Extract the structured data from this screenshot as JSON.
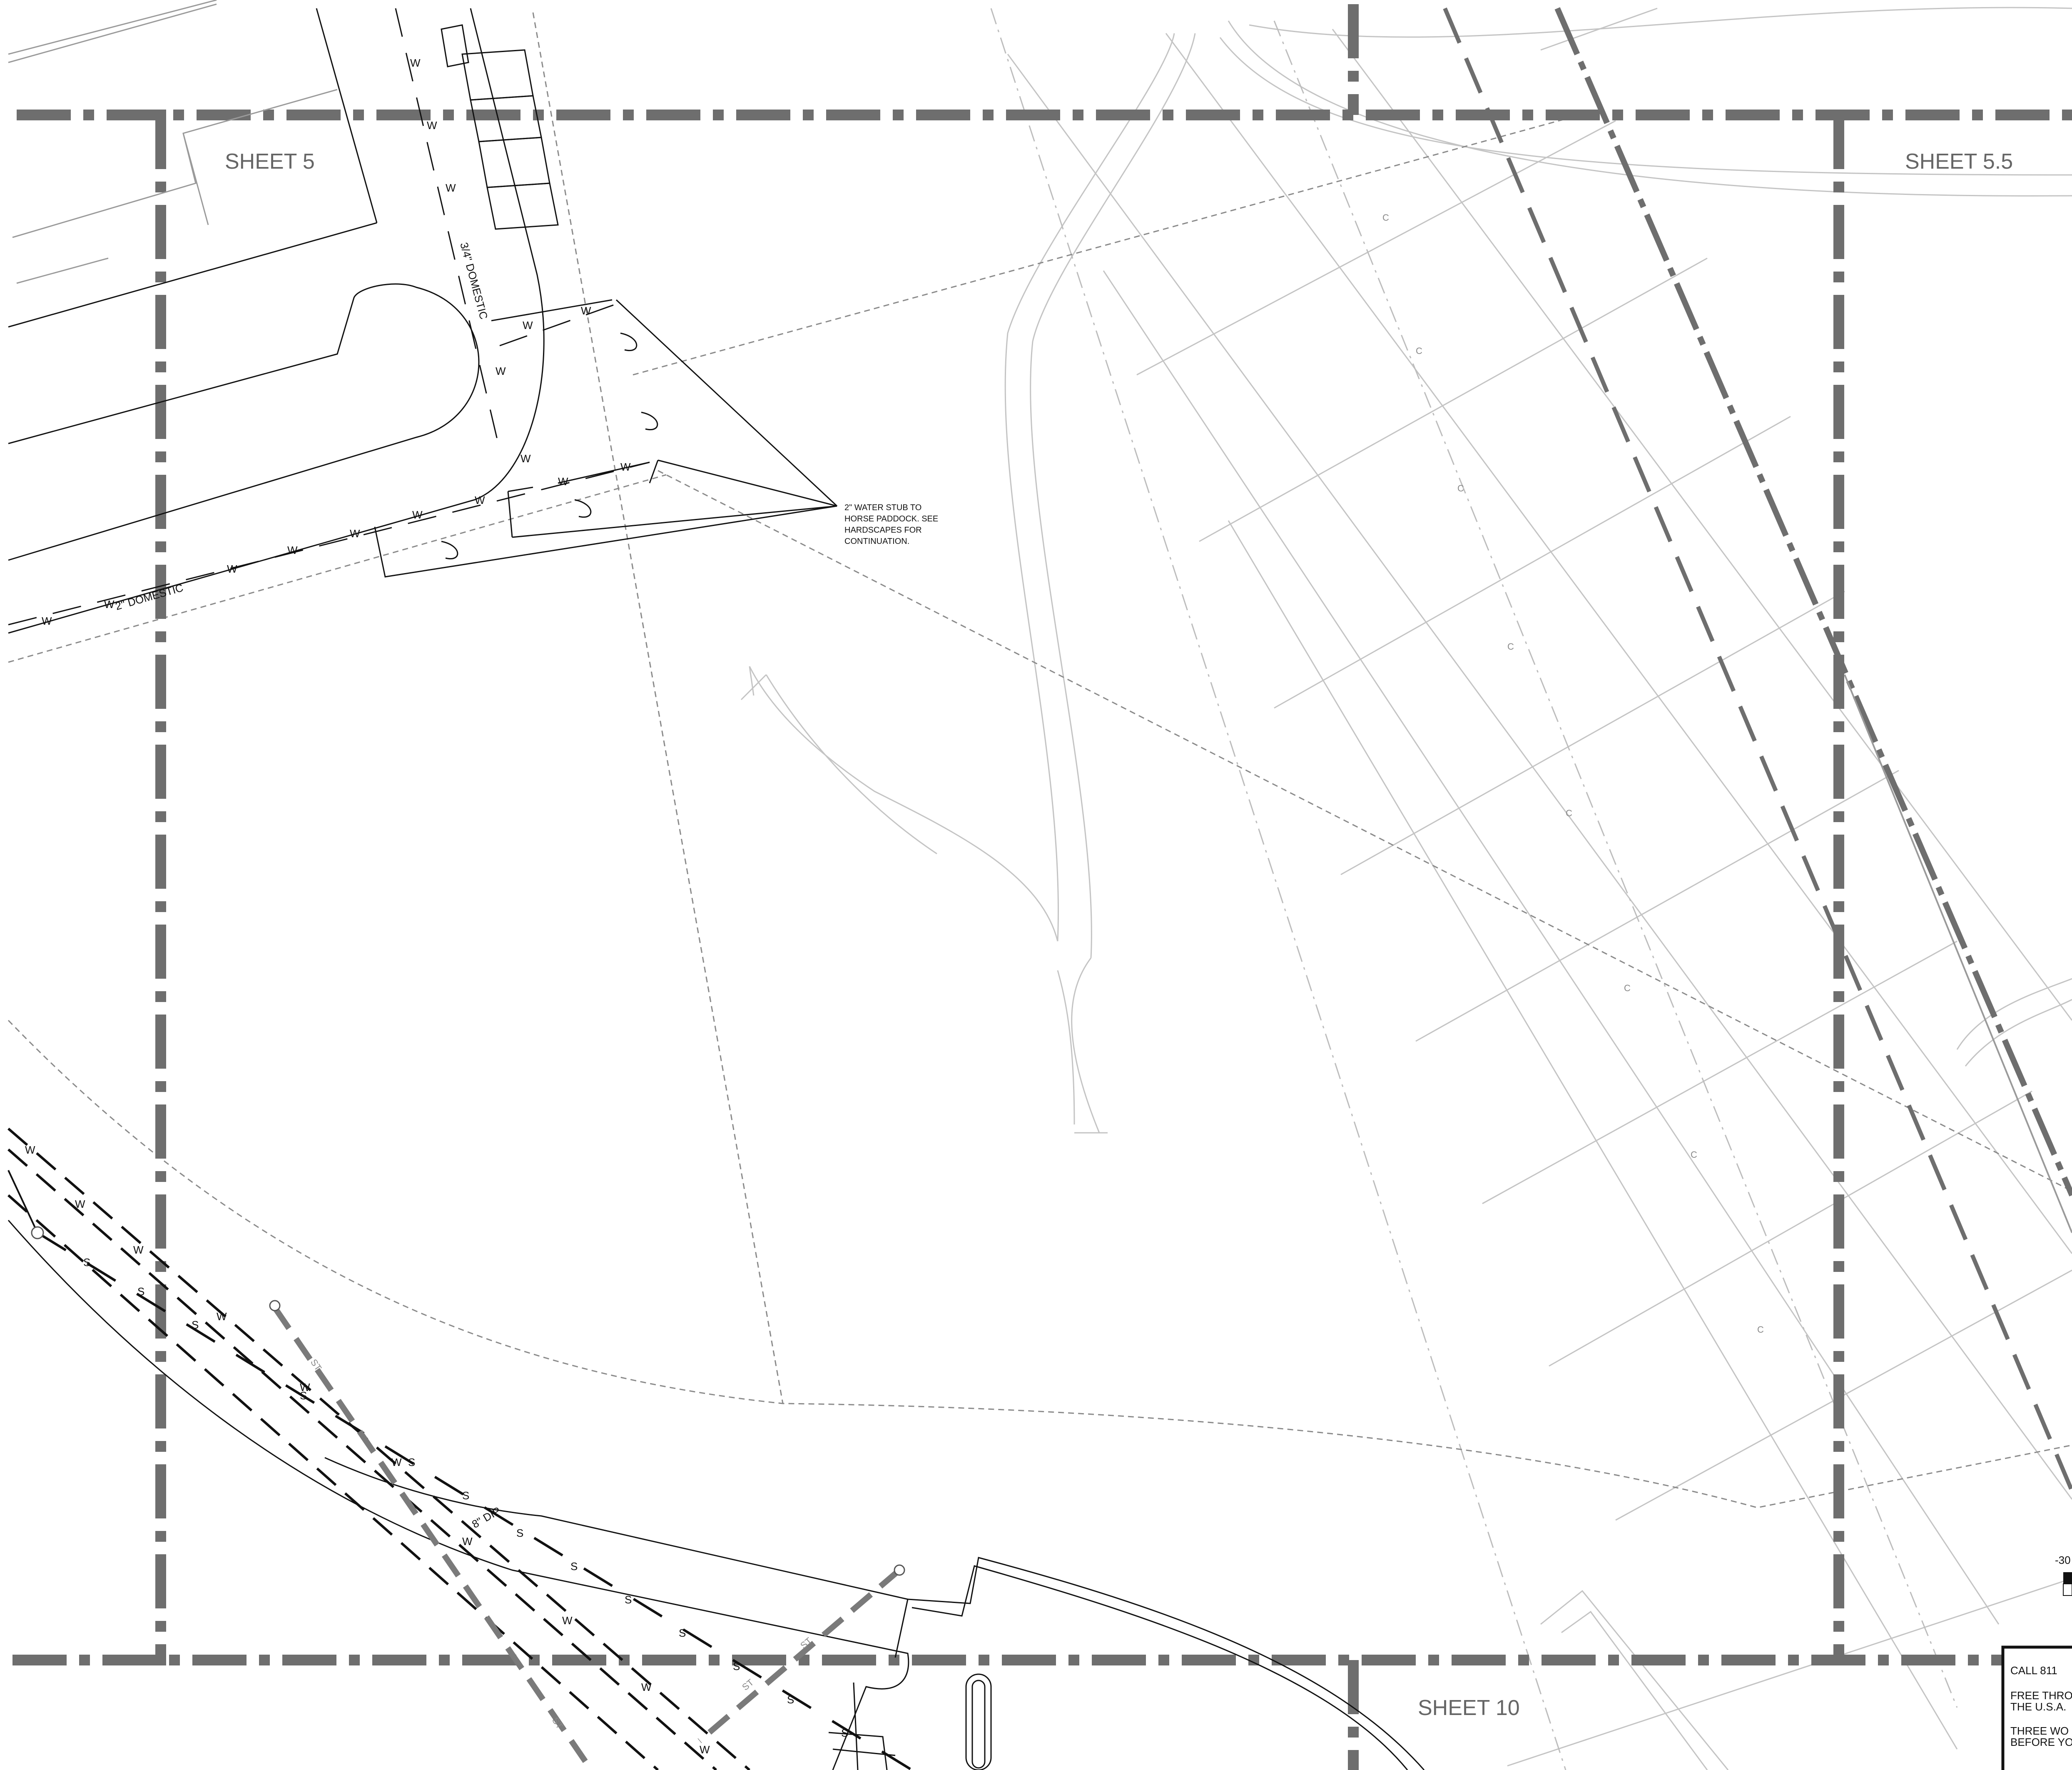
{
  "sheets": {
    "top_left": "SHEET 5",
    "top_right": "SHEET 5.5",
    "bottom": "SHEET 10"
  },
  "callout": {
    "lines": [
      "2\" WATER STUB TO",
      "HORSE PADDOCK.  SEE",
      "HARDSCAPES FOR",
      "CONTINUATION."
    ]
  },
  "pipe_labels": {
    "domestic_34": "3/4\" DOMESTIC",
    "domestic_2": "2\" DOMESTIC",
    "dip_8": "8\" DIP",
    "water_symbol": "W",
    "sewer_symbol": "S",
    "fiber_symbol": "C",
    "storm_symbol": "ST"
  },
  "scale_note": "-30",
  "call811": {
    "line1": "CALL 811",
    "line2a": "FREE THRO",
    "line2b": "THE U.S.A.",
    "line3a": "THREE WO",
    "line3b": "BEFORE YO"
  },
  "colors": {
    "match_line": "#6e6e6e",
    "linework": "#111111",
    "background_linework": "#bdbdbd",
    "fence": "#8a8a8a"
  }
}
